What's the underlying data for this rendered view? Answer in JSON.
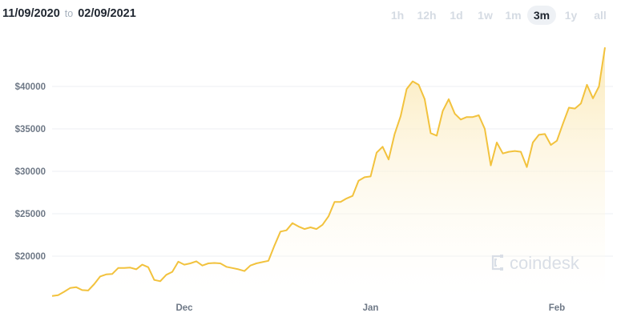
{
  "header": {
    "start_date": "11/09/2020",
    "to_label": "to",
    "end_date": "02/09/2021",
    "periods": [
      "1h",
      "12h",
      "1d",
      "1w",
      "1m",
      "3m",
      "1y",
      "all"
    ],
    "active_period": "3m"
  },
  "watermark": "coindesk",
  "colors": {
    "line": "#f2c23d",
    "fill_top": "#fbe7b0",
    "grid": "#eceff3",
    "active_bg": "#eef1f5"
  },
  "chart_data": {
    "type": "area",
    "title": "",
    "xlabel": "",
    "ylabel": "",
    "x_range": [
      "2020-11-09",
      "2021-02-09"
    ],
    "ylim": [
      15000,
      45000
    ],
    "y_ticks": [
      20000,
      25000,
      30000,
      35000,
      40000
    ],
    "y_tick_labels": [
      "$20000",
      "$25000",
      "$30000",
      "$35000",
      "$40000"
    ],
    "x_ticks": [
      {
        "date": "2020-12-01",
        "label": "Dec"
      },
      {
        "date": "2021-01-01",
        "label": "Jan"
      },
      {
        "date": "2021-02-01",
        "label": "Feb"
      }
    ],
    "grid": true,
    "legend": "none",
    "series": [
      {
        "dates": [
          "2020-11-09",
          "2020-11-10",
          "2020-11-11",
          "2020-11-12",
          "2020-11-13",
          "2020-11-14",
          "2020-11-15",
          "2020-11-16",
          "2020-11-17",
          "2020-11-18",
          "2020-11-19",
          "2020-11-20",
          "2020-11-21",
          "2020-11-22",
          "2020-11-23",
          "2020-11-24",
          "2020-11-25",
          "2020-11-26",
          "2020-11-27",
          "2020-11-28",
          "2020-11-29",
          "2020-11-30",
          "2020-12-01",
          "2020-12-02",
          "2020-12-03",
          "2020-12-04",
          "2020-12-05",
          "2020-12-06",
          "2020-12-07",
          "2020-12-08",
          "2020-12-09",
          "2020-12-10",
          "2020-12-11",
          "2020-12-12",
          "2020-12-13",
          "2020-12-14",
          "2020-12-15",
          "2020-12-16",
          "2020-12-17",
          "2020-12-18",
          "2020-12-19",
          "2020-12-20",
          "2020-12-21",
          "2020-12-22",
          "2020-12-23",
          "2020-12-24",
          "2020-12-25",
          "2020-12-26",
          "2020-12-27",
          "2020-12-28",
          "2020-12-29",
          "2020-12-30",
          "2020-12-31",
          "2021-01-01",
          "2021-01-02",
          "2021-01-03",
          "2021-01-04",
          "2021-01-05",
          "2021-01-06",
          "2021-01-07",
          "2021-01-08",
          "2021-01-09",
          "2021-01-10",
          "2021-01-11",
          "2021-01-12",
          "2021-01-13",
          "2021-01-14",
          "2021-01-15",
          "2021-01-16",
          "2021-01-17",
          "2021-01-18",
          "2021-01-19",
          "2021-01-20",
          "2021-01-21",
          "2021-01-22",
          "2021-01-23",
          "2021-01-24",
          "2021-01-25",
          "2021-01-26",
          "2021-01-27",
          "2021-01-28",
          "2021-01-29",
          "2021-01-30",
          "2021-01-31",
          "2021-02-01",
          "2021-02-02",
          "2021-02-03",
          "2021-02-04",
          "2021-02-05",
          "2021-02-06",
          "2021-02-07",
          "2021-02-08",
          "2021-02-09"
        ],
        "values": [
          15300,
          15400,
          15800,
          16250,
          16350,
          16000,
          15950,
          16700,
          17600,
          17850,
          17900,
          18600,
          18600,
          18650,
          18450,
          19000,
          18700,
          17200,
          17050,
          17800,
          18150,
          19350,
          19000,
          19150,
          19400,
          18900,
          19150,
          19200,
          19150,
          18750,
          18600,
          18450,
          18250,
          18900,
          19150,
          19300,
          19450,
          21250,
          22900,
          23050,
          23900,
          23500,
          23200,
          23400,
          23200,
          23700,
          24700,
          26400,
          26400,
          26800,
          27100,
          28900,
          29300,
          29400,
          32200,
          32900,
          31400,
          34400,
          36500,
          39700,
          40600,
          40200,
          38500,
          34500,
          34200,
          37100,
          38500,
          36800,
          36100,
          36400,
          36400,
          36600,
          35000,
          30700,
          33400,
          32100,
          32300,
          32400,
          32300,
          30500,
          33400,
          34300,
          34400,
          33100,
          33600,
          35600,
          37500,
          37400,
          38000,
          40200,
          38600,
          40000,
          44600
        ]
      }
    ]
  }
}
